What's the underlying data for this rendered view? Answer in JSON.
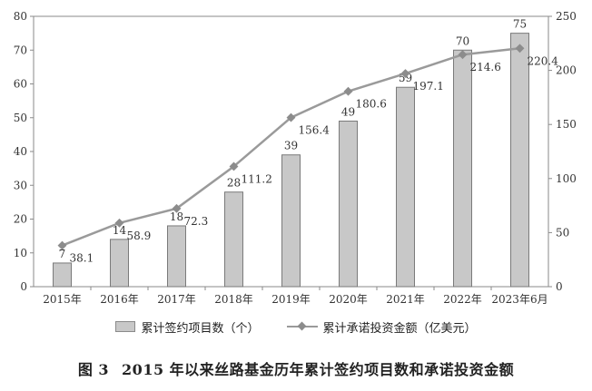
{
  "chart_data": {
    "type": "bar+line",
    "categories": [
      "2015年",
      "2016年",
      "2017年",
      "2018年",
      "2019年",
      "2020年",
      "2021年",
      "2022年",
      "2023年6月"
    ],
    "series": [
      {
        "name": "累计签约项目数（个）",
        "type": "bar",
        "axis": "left",
        "values": [
          7,
          14,
          18,
          28,
          39,
          49,
          59,
          70,
          75
        ],
        "color": "#c8c8c8"
      },
      {
        "name": "累计承诺投资金额（亿美元）",
        "type": "line",
        "axis": "right",
        "values": [
          38.1,
          58.9,
          72.3,
          111.2,
          156.4,
          180.6,
          197.1,
          214.6,
          220.4
        ],
        "color": "#9a9a9a"
      }
    ],
    "left_axis": {
      "range": [
        0,
        80
      ],
      "ticks": [
        0,
        10,
        20,
        30,
        40,
        50,
        60,
        70,
        80
      ]
    },
    "right_axis": {
      "range": [
        0,
        250
      ],
      "ticks": [
        0,
        50,
        100,
        150,
        200,
        250
      ]
    },
    "grid": false,
    "legend_position": "bottom",
    "title": "图 3　2015 年以来丝路基金历年累计签约项目数和承诺投资金额"
  },
  "caption": {
    "figure_number": "图 3",
    "text": "2015 年以来丝路基金历年累计签约项目数和承诺投资金额"
  }
}
